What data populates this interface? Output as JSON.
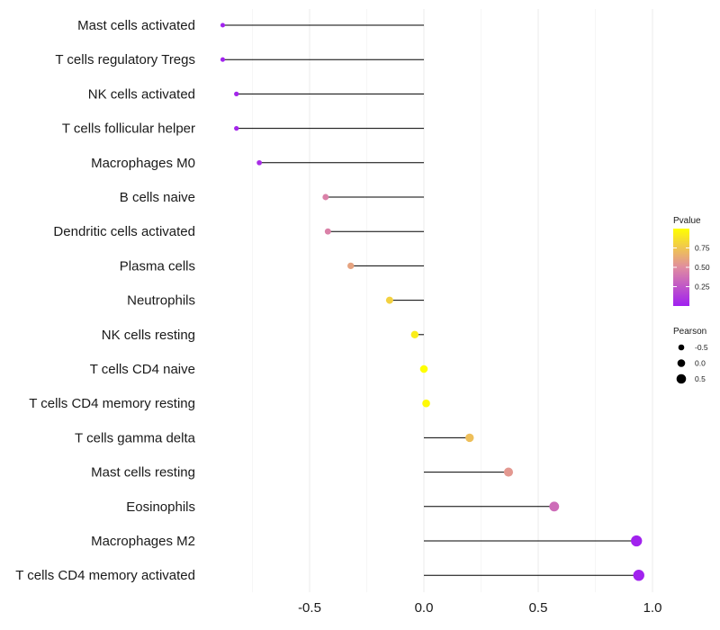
{
  "chart_data": {
    "type": "lollipop",
    "title": "",
    "xlabel": "",
    "ylabel": "",
    "xlim": [
      -0.9,
      1.0
    ],
    "xticks": [
      -0.5,
      0.0,
      0.5,
      1.0
    ],
    "xtick_labels": [
      "-0.5",
      "0.0",
      "0.5",
      "1.0"
    ],
    "grid": true,
    "categories": [
      "Mast cells activated",
      "T cells regulatory  Tregs",
      "NK cells activated",
      "T cells follicular helper",
      "Macrophages M0",
      "B cells naive",
      "Dendritic cells activated",
      "Plasma cells",
      "Neutrophils",
      "NK cells resting",
      "T cells CD4 naive",
      "T cells CD4 memory resting",
      "T cells gamma delta",
      "Mast cells resting",
      "Eosinophils",
      "Macrophages M2",
      "T cells CD4 memory activated"
    ],
    "pearson": [
      -0.88,
      -0.88,
      -0.82,
      -0.82,
      -0.72,
      -0.43,
      -0.42,
      -0.32,
      -0.15,
      -0.04,
      0.0,
      0.01,
      0.2,
      0.37,
      0.57,
      0.93,
      0.94
    ],
    "pvalue": [
      0.01,
      0.01,
      0.03,
      0.03,
      0.06,
      0.45,
      0.45,
      0.6,
      0.8,
      0.92,
      1.0,
      0.98,
      0.72,
      0.55,
      0.35,
      0.01,
      0.01
    ],
    "color_scale": {
      "low": "#a020f0",
      "mid": "#e08ca0",
      "high": "#ffff00"
    },
    "legend_pvalue": {
      "title": "Pvalue",
      "ticks": [
        0.75,
        0.5,
        0.25
      ],
      "tick_labels": [
        "0.75",
        "0.50",
        "0.25"
      ]
    },
    "legend_pearson": {
      "title": "Pearson",
      "ticks": [
        -0.5,
        0.0,
        0.5
      ],
      "tick_labels": [
        "-0.5",
        "0.0",
        "0.5"
      ]
    }
  }
}
